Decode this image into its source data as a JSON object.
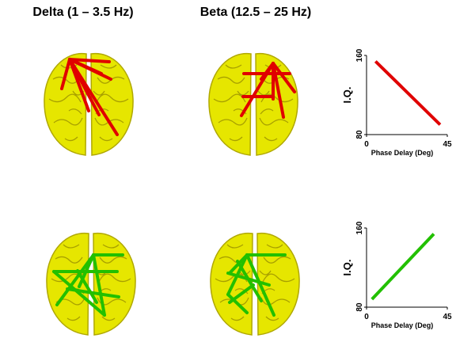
{
  "headers": [
    "Delta (1 – 3.5 Hz)",
    "Beta (12.5 – 25 Hz)"
  ],
  "chart_data": [
    {
      "type": "line",
      "x_label": "Phase Delay (Deg)",
      "y_label": "I.Q.",
      "x": [
        5,
        41
      ],
      "series": [
        {
          "color": "#e00000",
          "values": [
            154,
            90
          ]
        }
      ],
      "xlim": [
        0,
        45
      ],
      "xticks": [
        0,
        45
      ],
      "ylim": [
        80,
        160
      ],
      "yticks": [
        80,
        160
      ]
    },
    {
      "type": "line",
      "x_label": "Phase Delay (Deg)",
      "y_label": "I.Q.",
      "x": [
        3,
        37.5
      ],
      "series": [
        {
          "color": "#22c000",
          "values": [
            88,
            154
          ]
        }
      ],
      "xlim": [
        0,
        45
      ],
      "xticks": [
        0,
        45
      ],
      "ylim": [
        80,
        160
      ],
      "yticks": [
        80,
        160
      ]
    }
  ]
}
